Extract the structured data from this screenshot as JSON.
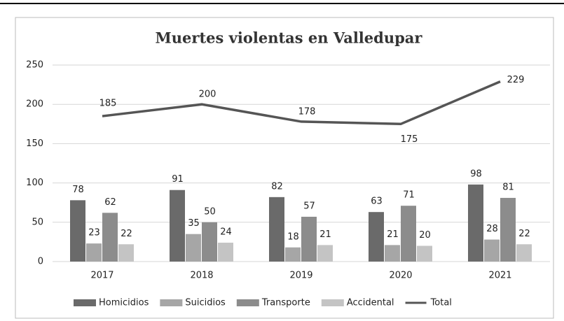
{
  "chart_data": {
    "type": "bar",
    "title": "Muertes violentas en Valledupar",
    "categories": [
      "2017",
      "2018",
      "2019",
      "2020",
      "2021"
    ],
    "series": [
      {
        "name": "Homicidios",
        "color": "#6a6a6a",
        "values": [
          78,
          91,
          82,
          63,
          98
        ]
      },
      {
        "name": "Suicidios",
        "color": "#a6a6a6",
        "values": [
          23,
          35,
          18,
          21,
          28
        ]
      },
      {
        "name": "Transporte",
        "color": "#8c8c8c",
        "values": [
          62,
          50,
          57,
          71,
          81
        ]
      },
      {
        "name": "Accidental",
        "color": "#c4c4c4",
        "values": [
          22,
          24,
          21,
          20,
          22
        ]
      },
      {
        "name": "Total",
        "type": "line",
        "color": "#555555",
        "values": [
          185,
          200,
          178,
          175,
          229
        ]
      }
    ],
    "ylim": [
      0,
      250
    ],
    "yticks": [
      0,
      50,
      100,
      150,
      200,
      250
    ],
    "grid": true,
    "legend": "bottom"
  }
}
